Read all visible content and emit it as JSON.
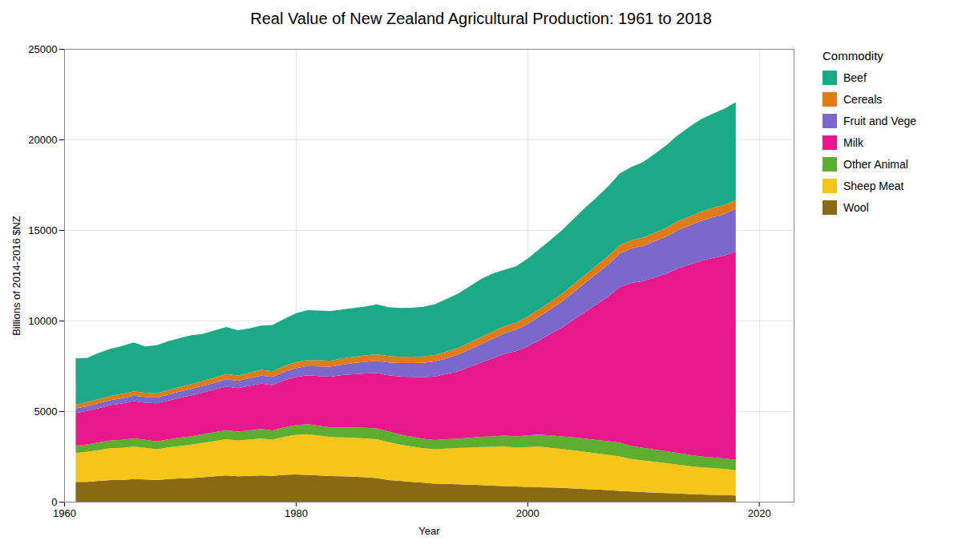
{
  "chart_data": {
    "type": "area",
    "stacked": true,
    "title": "Real Value of New Zealand Agricultural Production: 1961 to 2018",
    "xlabel": "Year",
    "ylabel": "Billions of 2014-2016 $NZ",
    "xlim": [
      1960,
      2023
    ],
    "ylim": [
      0,
      25000
    ],
    "xticks": [
      1960,
      1980,
      2000,
      2020
    ],
    "yticks": [
      0,
      5000,
      10000,
      15000,
      20000,
      25000
    ],
    "grid": true,
    "legend": "right",
    "legend_title": "Commodity",
    "x": [
      1961,
      1962,
      1963,
      1964,
      1965,
      1966,
      1967,
      1968,
      1969,
      1970,
      1971,
      1972,
      1973,
      1974,
      1975,
      1976,
      1977,
      1978,
      1979,
      1980,
      1981,
      1982,
      1983,
      1984,
      1985,
      1986,
      1987,
      1988,
      1989,
      1990,
      1991,
      1992,
      1993,
      1994,
      1995,
      1996,
      1997,
      1998,
      1999,
      2000,
      2001,
      2002,
      2003,
      2004,
      2005,
      2006,
      2007,
      2008,
      2009,
      2010,
      2011,
      2012,
      2013,
      2014,
      2015,
      2016,
      2017,
      2018
    ],
    "series": [
      {
        "name": "Wool",
        "color": "#8B6914",
        "values": [
          1100,
          1100,
          1150,
          1200,
          1200,
          1250,
          1230,
          1200,
          1250,
          1280,
          1300,
          1350,
          1400,
          1450,
          1400,
          1430,
          1450,
          1430,
          1480,
          1500,
          1480,
          1450,
          1420,
          1400,
          1380,
          1350,
          1300,
          1200,
          1150,
          1100,
          1050,
          1000,
          980,
          960,
          940,
          920,
          880,
          860,
          840,
          820,
          800,
          780,
          760,
          730,
          700,
          670,
          640,
          600,
          560,
          530,
          500,
          480,
          450,
          420,
          400,
          380,
          360,
          340
        ]
      },
      {
        "name": "Sheep Meat",
        "color": "#F5C518",
        "values": [
          1600,
          1650,
          1700,
          1750,
          1780,
          1800,
          1750,
          1700,
          1750,
          1800,
          1850,
          1900,
          1950,
          2000,
          1980,
          2000,
          2050,
          2000,
          2100,
          2200,
          2250,
          2200,
          2150,
          2150,
          2150,
          2150,
          2150,
          2100,
          2000,
          1950,
          1900,
          1900,
          1950,
          2000,
          2050,
          2100,
          2150,
          2200,
          2150,
          2200,
          2250,
          2200,
          2150,
          2100,
          2050,
          2000,
          1950,
          1900,
          1800,
          1750,
          1700,
          1650,
          1600,
          1550,
          1500,
          1480,
          1450,
          1400
        ]
      },
      {
        "name": "Other Animal",
        "color": "#5DAD2F",
        "values": [
          400,
          410,
          420,
          430,
          440,
          450,
          440,
          430,
          440,
          460,
          470,
          480,
          490,
          500,
          490,
          510,
          520,
          510,
          520,
          530,
          550,
          540,
          530,
          540,
          560,
          580,
          600,
          580,
          560,
          540,
          520,
          510,
          520,
          530,
          540,
          560,
          580,
          600,
          620,
          640,
          660,
          680,
          700,
          720,
          730,
          740,
          750,
          760,
          720,
          700,
          680,
          660,
          640,
          620,
          600,
          590,
          580,
          570
        ]
      },
      {
        "name": "Milk",
        "color": "#E9178C",
        "values": [
          1800,
          1850,
          1900,
          1950,
          2000,
          2050,
          2050,
          2100,
          2150,
          2200,
          2250,
          2300,
          2350,
          2400,
          2400,
          2450,
          2500,
          2500,
          2600,
          2650,
          2700,
          2750,
          2800,
          2900,
          2950,
          3000,
          3050,
          3100,
          3200,
          3300,
          3400,
          3500,
          3600,
          3700,
          3900,
          4100,
          4300,
          4500,
          4700,
          4900,
          5200,
          5600,
          6000,
          6500,
          7000,
          7500,
          8000,
          8600,
          9000,
          9200,
          9500,
          9800,
          10200,
          10500,
          10800,
          11000,
          11200,
          11500
        ]
      },
      {
        "name": "Fruit and Vege",
        "color": "#7B68CC",
        "values": [
          250,
          260,
          270,
          280,
          290,
          300,
          310,
          320,
          330,
          340,
          360,
          370,
          380,
          400,
          410,
          420,
          440,
          450,
          470,
          490,
          510,
          530,
          560,
          580,
          610,
          640,
          680,
          710,
          740,
          770,
          800,
          830,
          870,
          920,
          970,
          1020,
          1080,
          1130,
          1180,
          1240,
          1300,
          1360,
          1440,
          1520,
          1600,
          1680,
          1760,
          1850,
          1900,
          1950,
          2000,
          2050,
          2100,
          2150,
          2200,
          2250,
          2300,
          2350
        ]
      },
      {
        "name": "Cereals",
        "color": "#E07B1A",
        "values": [
          220,
          225,
          230,
          235,
          240,
          245,
          240,
          235,
          245,
          255,
          265,
          275,
          285,
          295,
          285,
          305,
          315,
          315,
          315,
          325,
          335,
          335,
          325,
          335,
          345,
          355,
          365,
          355,
          345,
          345,
          345,
          355,
          365,
          375,
          385,
          395,
          405,
          405,
          395,
          405,
          415,
          425,
          435,
          445,
          455,
          465,
          475,
          475,
          455,
          465,
          475,
          485,
          495,
          505,
          515,
          515,
          505,
          495
        ]
      },
      {
        "name": "Beef",
        "color": "#1BAA87",
        "values": [
          2550,
          2450,
          2550,
          2600,
          2650,
          2700,
          2550,
          2650,
          2700,
          2700,
          2700,
          2600,
          2600,
          2600,
          2500,
          2450,
          2450,
          2550,
          2600,
          2700,
          2750,
          2750,
          2750,
          2700,
          2700,
          2700,
          2750,
          2700,
          2700,
          2700,
          2750,
          2800,
          2900,
          3000,
          3100,
          3200,
          3200,
          3100,
          3100,
          3200,
          3300,
          3400,
          3500,
          3600,
          3700,
          3750,
          3850,
          3950,
          4050,
          4150,
          4350,
          4550,
          4750,
          4950,
          5100,
          5200,
          5300,
          5400
        ]
      }
    ]
  }
}
